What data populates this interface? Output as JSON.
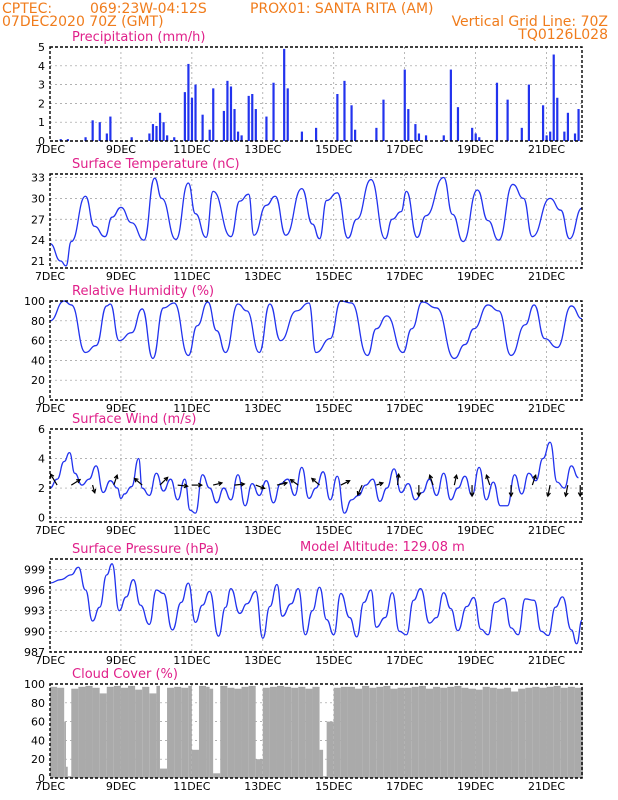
{
  "header": {
    "source": "CPTEC:",
    "location_coords": "069:23W-04:12S",
    "location_name": "PROX01: SANTA RITA (AM)",
    "run_date": "07DEC2020 70Z (GMT)",
    "grid_line_note": "Vertical Grid Line: 70Z",
    "model_code": "TQ0126L028",
    "model_altitude": "Model Altitude: 129.08 m"
  },
  "colors": {
    "header": "#f07c1c",
    "panel_title": "#e0208a",
    "series": "#2233ee",
    "cloud": "#aaaaaa"
  },
  "x_axis": {
    "start_day": 7,
    "end_day": 22,
    "tick_days": [
      7,
      9,
      11,
      13,
      15,
      17,
      19,
      21
    ],
    "tick_labels": [
      "7DEC",
      "9DEC",
      "11DEC",
      "13DEC",
      "15DEC",
      "17DEC",
      "19DEC",
      "21DEC"
    ]
  },
  "chart_data": [
    {
      "id": "precip",
      "type": "bar",
      "title": "Precipitation (mm/h)",
      "ylim": [
        0,
        5
      ],
      "yticks": [
        0,
        1,
        2,
        3,
        4,
        5
      ],
      "grid": true,
      "series": [
        {
          "x_day": [
            7.3,
            7.5,
            8.0,
            8.2,
            8.4,
            8.6,
            8.7,
            9.3,
            9.8,
            9.9,
            10.0,
            10.1,
            10.2,
            10.3,
            10.5,
            10.8,
            10.9,
            11.0,
            11.1,
            11.3,
            11.5,
            11.6,
            11.9,
            12.0,
            12.1,
            12.2,
            12.3,
            12.4,
            12.6,
            12.7,
            12.8,
            13.1,
            13.3,
            13.6,
            13.7,
            14.1,
            14.5,
            15.1,
            15.3,
            15.5,
            15.6,
            16.2,
            16.4,
            17.0,
            17.1,
            17.3,
            17.4,
            17.6,
            18.1,
            18.3,
            18.5,
            18.9,
            19.0,
            19.1,
            19.6,
            19.9,
            20.3,
            20.5,
            20.9,
            21.0,
            21.1,
            21.2,
            21.3,
            21.5,
            21.6,
            21.8,
            21.9
          ],
          "values": [
            0.1,
            0.1,
            0.2,
            1.1,
            1.0,
            0.4,
            1.3,
            0.2,
            0.4,
            0.9,
            0.8,
            1.5,
            1.0,
            0.3,
            0.2,
            2.6,
            4.1,
            2.3,
            3.0,
            1.4,
            0.6,
            2.8,
            1.6,
            3.2,
            2.9,
            1.7,
            0.5,
            0.3,
            2.4,
            2.5,
            1.7,
            1.3,
            3.1,
            4.9,
            2.8,
            0.5,
            0.7,
            2.5,
            3.2,
            1.9,
            0.6,
            0.7,
            2.2,
            3.8,
            1.7,
            0.9,
            0.4,
            0.3,
            0.3,
            3.8,
            1.8,
            0.7,
            0.4,
            0.2,
            3.1,
            2.2,
            0.7,
            3.0,
            1.9,
            0.3,
            0.5,
            4.6,
            2.3,
            0.5,
            1.5,
            0.4,
            1.7
          ]
        }
      ]
    },
    {
      "id": "temp",
      "type": "line",
      "title": "Surface Temperature (nC)",
      "ylim": [
        20,
        33.5
      ],
      "yticks": [
        21,
        24,
        27,
        30,
        33
      ],
      "grid": true,
      "series": [
        {
          "x_day": [
            7.0,
            7.3,
            7.45,
            7.6,
            8.0,
            8.25,
            8.55,
            8.75,
            9.0,
            9.3,
            9.65,
            9.95,
            10.15,
            10.55,
            10.9,
            11.1,
            11.4,
            11.6,
            12.1,
            12.35,
            12.6,
            12.75,
            13.1,
            13.35,
            13.65,
            14.1,
            14.4,
            14.6,
            14.8,
            15.1,
            15.4,
            15.65,
            16.05,
            16.45,
            16.65,
            16.9,
            17.05,
            17.35,
            17.6,
            18.1,
            18.35,
            18.65,
            19.05,
            19.35,
            19.65,
            20.05,
            20.35,
            20.6,
            21.1,
            21.4,
            21.65,
            22.0
          ],
          "values": [
            23.5,
            21.0,
            20.3,
            23.8,
            30.3,
            26.0,
            24.5,
            27.3,
            28.7,
            26.5,
            24.0,
            32.9,
            30.0,
            24.1,
            32.2,
            27.8,
            24.4,
            31.0,
            24.5,
            29.6,
            30.6,
            24.7,
            29.0,
            30.3,
            24.7,
            31.4,
            26.3,
            24.2,
            29.7,
            30.8,
            24.3,
            27.0,
            32.7,
            24.2,
            27.0,
            28.1,
            31.0,
            24.4,
            27.5,
            33.0,
            27.7,
            23.8,
            31.2,
            26.8,
            24.0,
            32.0,
            30.0,
            24.5,
            30.0,
            28.3,
            24.2,
            28.6
          ]
        }
      ]
    },
    {
      "id": "rh",
      "type": "line",
      "title": "Relative Humidity (%)",
      "ylim": [
        0,
        100
      ],
      "yticks": [
        0,
        20,
        40,
        60,
        80,
        100
      ],
      "grid": true,
      "series": [
        {
          "x_day": [
            7.0,
            7.4,
            7.6,
            8.0,
            8.3,
            8.6,
            8.7,
            8.95,
            9.3,
            9.6,
            9.9,
            10.2,
            10.5,
            10.9,
            11.15,
            11.45,
            11.7,
            11.95,
            12.3,
            12.55,
            12.9,
            13.2,
            13.5,
            13.95,
            14.3,
            14.5,
            14.9,
            15.2,
            15.5,
            15.95,
            16.2,
            16.5,
            16.95,
            17.2,
            17.5,
            17.9,
            18.4,
            18.7,
            18.95,
            19.35,
            19.65,
            20.0,
            20.4,
            20.65,
            20.95,
            21.3,
            21.7,
            22.0
          ],
          "values": [
            80,
            100,
            96,
            48,
            55,
            95,
            97,
            60,
            68,
            92,
            42,
            93,
            98,
            45,
            75,
            99,
            70,
            48,
            97,
            90,
            48,
            97,
            60,
            90,
            98,
            48,
            62,
            100,
            98,
            45,
            72,
            85,
            48,
            72,
            99,
            93,
            42,
            56,
            72,
            96,
            90,
            45,
            76,
            96,
            62,
            53,
            95,
            82
          ]
        }
      ]
    },
    {
      "id": "wind",
      "type": "line",
      "title": "Surface Wind (m/s)",
      "ylim": [
        -0.3,
        6
      ],
      "yticks": [
        0,
        2,
        4,
        6
      ],
      "grid": true,
      "series": [
        {
          "x_day": [
            7.0,
            7.2,
            7.4,
            7.55,
            7.7,
            7.9,
            8.1,
            8.3,
            8.5,
            8.7,
            8.9,
            9.0,
            9.1,
            9.3,
            9.5,
            9.6,
            9.8,
            10.0,
            10.2,
            10.4,
            10.6,
            10.8,
            10.95,
            11.1,
            11.3,
            11.5,
            11.7,
            11.9,
            12.1,
            12.3,
            12.5,
            12.7,
            12.9,
            13.1,
            13.3,
            13.5,
            13.7,
            13.9,
            14.1,
            14.3,
            14.5,
            14.7,
            14.9,
            15.1,
            15.3,
            15.5,
            15.7,
            15.9,
            16.1,
            16.3,
            16.5,
            16.7,
            16.9,
            17.1,
            17.3,
            17.5,
            17.7,
            17.9,
            18.1,
            18.3,
            18.5,
            18.7,
            18.9,
            19.1,
            19.3,
            19.5,
            19.7,
            19.9,
            20.1,
            20.3,
            20.5,
            20.7,
            20.9,
            21.1,
            21.3,
            21.5,
            21.7,
            21.9
          ],
          "values": [
            2.0,
            2.6,
            3.8,
            4.4,
            3.0,
            2.2,
            2.6,
            3.5,
            1.7,
            2.5,
            2.0,
            1.3,
            1.6,
            2.1,
            4.0,
            2.0,
            1.5,
            3.0,
            1.8,
            2.6,
            1.2,
            2.6,
            0.5,
            0.3,
            2.9,
            2.0,
            1.0,
            2.0,
            1.2,
            2.9,
            0.8,
            2.3,
            1.5,
            2.5,
            1.0,
            2.3,
            2.6,
            1.5,
            3.4,
            1.3,
            2.0,
            3.1,
            1.2,
            2.8,
            0.3,
            1.2,
            1.5,
            2.2,
            2.6,
            1.1,
            2.0,
            3.3,
            1.7,
            2.3,
            1.2,
            1.7,
            2.6,
            1.5,
            3.0,
            1.2,
            2.0,
            2.8,
            1.5,
            3.4,
            1.2,
            2.4,
            0.8,
            0.8,
            2.9,
            1.6,
            3.0,
            2.5,
            4.0,
            5.1,
            2.4,
            2.0,
            3.5,
            2.7
          ]
        }
      ],
      "vectors": [
        {
          "x_day": 7.2,
          "u": -0.6,
          "v": 1.0
        },
        {
          "x_day": 7.6,
          "u": 0.8,
          "v": 0.5
        },
        {
          "x_day": 8.2,
          "u": 0.2,
          "v": -0.7
        },
        {
          "x_day": 8.8,
          "u": 0.3,
          "v": 0.9
        },
        {
          "x_day": 9.6,
          "u": -0.7,
          "v": 0.6
        },
        {
          "x_day": 10.1,
          "u": 0.7,
          "v": 0.7
        },
        {
          "x_day": 10.6,
          "u": 0.9,
          "v": -0.1
        },
        {
          "x_day": 11.0,
          "u": 0.9,
          "v": 0.0
        },
        {
          "x_day": 11.6,
          "u": 0.8,
          "v": 0.2
        },
        {
          "x_day": 12.2,
          "u": 0.9,
          "v": 0.1
        },
        {
          "x_day": 12.8,
          "u": 0.8,
          "v": -0.3
        },
        {
          "x_day": 13.4,
          "u": 0.9,
          "v": 0.2
        },
        {
          "x_day": 14.0,
          "u": -0.7,
          "v": 0.5
        },
        {
          "x_day": 14.6,
          "u": -0.7,
          "v": 0.6
        },
        {
          "x_day": 15.2,
          "u": 0.8,
          "v": 0.4
        },
        {
          "x_day": 15.8,
          "u": -0.4,
          "v": -0.9
        },
        {
          "x_day": 16.2,
          "u": 0.6,
          "v": 0.2
        },
        {
          "x_day": 16.8,
          "u": 0.1,
          "v": 1.0
        },
        {
          "x_day": 17.4,
          "u": 0.0,
          "v": -1.0
        },
        {
          "x_day": 17.8,
          "u": -0.3,
          "v": 0.9
        },
        {
          "x_day": 18.4,
          "u": 0.2,
          "v": 0.9
        },
        {
          "x_day": 18.9,
          "u": 0.0,
          "v": -1.0
        },
        {
          "x_day": 19.4,
          "u": -0.3,
          "v": 0.9
        },
        {
          "x_day": 20.0,
          "u": 0.0,
          "v": -1.0
        },
        {
          "x_day": 20.6,
          "u": 0.3,
          "v": 0.9
        },
        {
          "x_day": 21.1,
          "u": -0.2,
          "v": -1.0
        },
        {
          "x_day": 21.6,
          "u": -0.2,
          "v": -1.0
        },
        {
          "x_day": 21.95,
          "u": 0.0,
          "v": -1.0
        }
      ]
    },
    {
      "id": "pres",
      "type": "line",
      "title": "Surface Pressure (hPa)",
      "ylim": [
        987,
        1000.5
      ],
      "yticks": [
        987,
        990,
        993,
        996,
        999
      ],
      "grid": true,
      "series": [
        {
          "x_day": [
            7.0,
            7.3,
            7.6,
            7.8,
            8.0,
            8.2,
            8.4,
            8.6,
            8.75,
            8.95,
            9.15,
            9.35,
            9.55,
            9.8,
            10.0,
            10.2,
            10.45,
            10.7,
            10.9,
            11.1,
            11.3,
            11.5,
            11.75,
            11.95,
            12.1,
            12.35,
            12.55,
            12.8,
            13.0,
            13.2,
            13.4,
            13.55,
            13.8,
            14.0,
            14.2,
            14.4,
            14.6,
            14.8,
            15.0,
            15.2,
            15.45,
            15.65,
            15.85,
            16.05,
            16.2,
            16.45,
            16.65,
            16.85,
            17.05,
            17.25,
            17.45,
            17.7,
            17.9,
            18.1,
            18.3,
            18.5,
            18.75,
            18.95,
            19.15,
            19.35,
            19.55,
            19.8,
            20.0,
            20.2,
            20.4,
            20.65,
            20.85,
            21.05,
            21.25,
            21.45,
            21.7,
            21.85,
            22.0
          ],
          "values": [
            997,
            997.5,
            998.2,
            999.3,
            996,
            991.5,
            993.5,
            998.2,
            999.8,
            993,
            995,
            997.5,
            993.8,
            991,
            996,
            995.5,
            990.2,
            994.2,
            997,
            991.3,
            993.8,
            995.8,
            989.3,
            993.5,
            996.2,
            992.6,
            994,
            995.8,
            989,
            993.6,
            996.8,
            992.2,
            994,
            996.2,
            989.5,
            993,
            996.4,
            991.7,
            989.5,
            995.5,
            992,
            989.2,
            994.2,
            996,
            990.6,
            992,
            995.6,
            990,
            989.5,
            994.5,
            996.2,
            991.2,
            992,
            995.6,
            993.3,
            990.1,
            993.6,
            994.9,
            990.3,
            989.5,
            994.2,
            994.8,
            990.5,
            989.5,
            994.7,
            994.5,
            990,
            989.4,
            993.5,
            995,
            990.2,
            988.2,
            991.6
          ]
        }
      ]
    },
    {
      "id": "cloud",
      "type": "bar",
      "title": "Cloud Cover (%)",
      "ylim": [
        0,
        100
      ],
      "yticks": [
        0,
        20,
        40,
        60,
        80,
        100
      ],
      "grid": true,
      "series": [
        {
          "x_day": [
            7.0,
            7.2,
            7.4,
            7.45,
            7.5,
            7.6,
            7.8,
            8.0,
            8.2,
            8.4,
            8.6,
            8.8,
            9.0,
            9.2,
            9.4,
            9.6,
            9.8,
            10.0,
            10.1,
            10.3,
            10.5,
            10.7,
            10.9,
            11.0,
            11.2,
            11.4,
            11.5,
            11.6,
            11.8,
            12.0,
            12.2,
            12.4,
            12.6,
            12.8,
            13.0,
            13.2,
            13.4,
            13.6,
            13.8,
            14.0,
            14.2,
            14.4,
            14.6,
            14.7,
            14.8,
            15.0,
            15.2,
            15.4,
            15.6,
            15.8,
            16.0,
            16.2,
            16.4,
            16.6,
            16.8,
            17.0,
            17.2,
            17.4,
            17.6,
            17.8,
            18.0,
            18.2,
            18.4,
            18.6,
            18.8,
            19.0,
            19.2,
            19.4,
            19.6,
            19.8,
            20.0,
            20.2,
            20.4,
            20.6,
            20.8,
            21.0,
            21.2,
            21.4,
            21.6,
            21.8,
            22.0
          ],
          "values": [
            97,
            96,
            60,
            12,
            2,
            95,
            97,
            98,
            96,
            90,
            97,
            98,
            96,
            98,
            94,
            97,
            90,
            98,
            10,
            96,
            97,
            96,
            98,
            30,
            98,
            97,
            95,
            5,
            98,
            96,
            95,
            97,
            98,
            20,
            96,
            97,
            98,
            97,
            96,
            97,
            95,
            97,
            30,
            2,
            60,
            96,
            97,
            97,
            95,
            98,
            96,
            97,
            98,
            95,
            96,
            96,
            97,
            98,
            95,
            97,
            96,
            97,
            98,
            96,
            95,
            94,
            97,
            96,
            95,
            96,
            92,
            95,
            96,
            97,
            96,
            97,
            98,
            96,
            97,
            96,
            97
          ]
        }
      ]
    }
  ]
}
